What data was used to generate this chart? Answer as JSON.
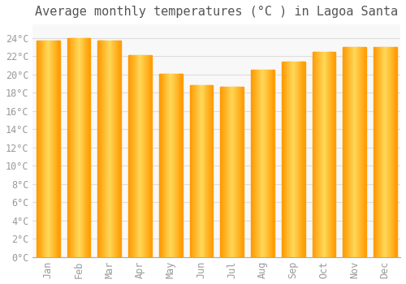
{
  "title": "Average monthly temperatures (°C ) in Lagoa Santa",
  "months": [
    "Jan",
    "Feb",
    "Mar",
    "Apr",
    "May",
    "Jun",
    "Jul",
    "Aug",
    "Sep",
    "Oct",
    "Nov",
    "Dec"
  ],
  "values": [
    23.7,
    24.0,
    23.7,
    22.1,
    20.1,
    18.8,
    18.7,
    20.5,
    21.4,
    22.5,
    23.0,
    23.0
  ],
  "bar_color_main": "#FFBB00",
  "bar_color_edge": "#FF9900",
  "background_color": "#FFFFFF",
  "plot_bg_color": "#F8F8F8",
  "grid_color": "#DDDDDD",
  "text_color": "#999999",
  "title_color": "#555555",
  "ylim": [
    0,
    25.5
  ],
  "yticks": [
    0,
    2,
    4,
    6,
    8,
    10,
    12,
    14,
    16,
    18,
    20,
    22,
    24
  ],
  "title_fontsize": 11,
  "tick_fontsize": 8.5
}
